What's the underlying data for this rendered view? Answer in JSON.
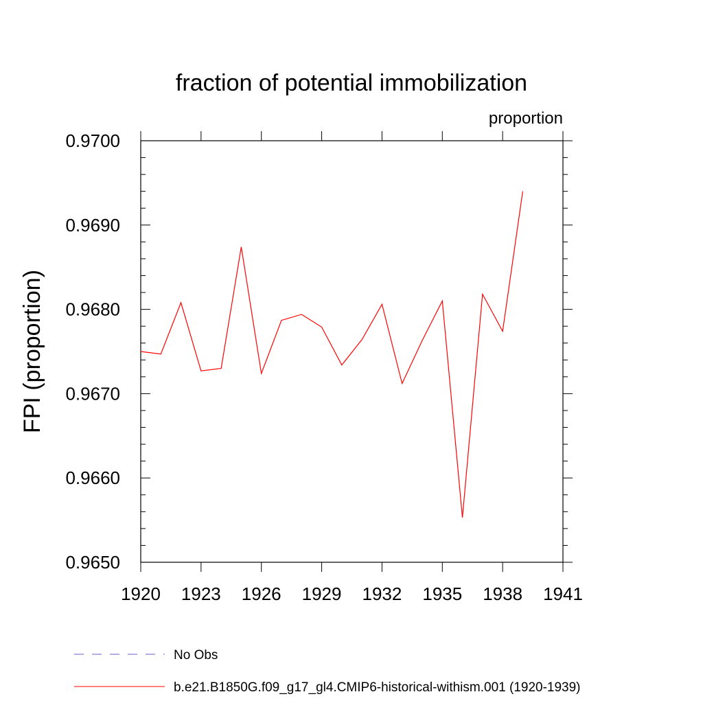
{
  "chart_data": {
    "type": "line",
    "title": "fraction of potential immobilization",
    "subtitle": "proportion",
    "xlabel": "",
    "ylabel": "FPI  (proportion)",
    "xlim": [
      1920,
      1941
    ],
    "ylim": [
      0.965,
      0.97
    ],
    "xticks": [
      1920,
      1923,
      1926,
      1929,
      1932,
      1935,
      1938,
      1941
    ],
    "xtick_labels": [
      "1920",
      "1923",
      "1926",
      "1929",
      "1932",
      "1935",
      "1938",
      "1941"
    ],
    "yticks": [
      0.965,
      0.966,
      0.967,
      0.968,
      0.969,
      0.97
    ],
    "ytick_labels": [
      "0.9650",
      "0.9660",
      "0.9670",
      "0.9680",
      "0.9690",
      "0.9700"
    ],
    "grid": false,
    "legend_position": "bottom-left",
    "series": [
      {
        "name": "No Obs",
        "color": "#6a5acd",
        "style": "dashed",
        "x": [],
        "values": []
      },
      {
        "name": "b.e21.B1850G.f09_g17_gl4.CMIP6-historical-withism.001 (1920-1939)",
        "color": "#ff0000",
        "style": "solid",
        "x": [
          1920,
          1921,
          1922,
          1923,
          1924,
          1925,
          1926,
          1927,
          1928,
          1929,
          1930,
          1931,
          1932,
          1933,
          1934,
          1935,
          1936,
          1937,
          1938,
          1939
        ],
        "values": [
          0.9675,
          0.96747,
          0.96808,
          0.96727,
          0.9673,
          0.96874,
          0.96724,
          0.96787,
          0.96794,
          0.96779,
          0.96734,
          0.96764,
          0.96806,
          0.96712,
          0.96763,
          0.9681,
          0.96553,
          0.96818,
          0.96774,
          0.9694
        ]
      }
    ]
  }
}
